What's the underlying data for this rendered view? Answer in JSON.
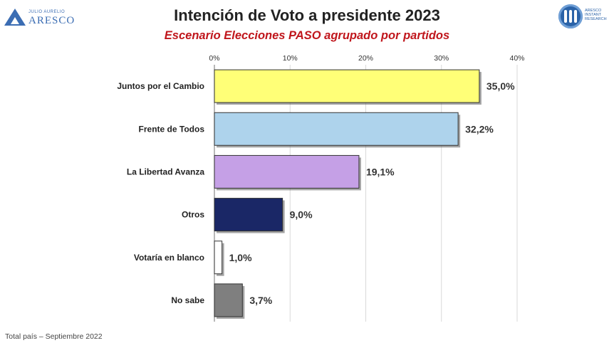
{
  "header": {
    "title": "Intención de Voto a presidente 2023",
    "subtitle": "Escenario Elecciones PASO agrupado por partidos"
  },
  "logos": {
    "left_small": "JULIO AURELIO",
    "left_big": "ARESCO",
    "right_lines": [
      "ARESCO",
      "INSTANT",
      "RESEARCH"
    ]
  },
  "footer": "Total país – Septiembre 2022",
  "chart_data": {
    "type": "bar",
    "orientation": "horizontal",
    "categories": [
      "Juntos por el Cambio",
      "Frente de Todos",
      "La Libertad Avanza",
      "Otros",
      "Votaría en blanco",
      "No sabe"
    ],
    "values": [
      35.0,
      32.2,
      19.1,
      9.0,
      1.0,
      3.7
    ],
    "value_labels": [
      "35,0%",
      "32,2%",
      "19,1%",
      "9,0%",
      "1,0%",
      "3,7%"
    ],
    "colors": [
      "#ffff77",
      "#aed3ec",
      "#c5a0e6",
      "#1a2766",
      "#ffffff",
      "#7f7f7f"
    ],
    "xlim": [
      0,
      40
    ],
    "x_ticks": [
      0,
      10,
      20,
      30,
      40
    ],
    "x_tick_labels": [
      "0%",
      "10%",
      "20%",
      "30%",
      "40%"
    ],
    "x_axis_position": "top",
    "grid": true
  }
}
